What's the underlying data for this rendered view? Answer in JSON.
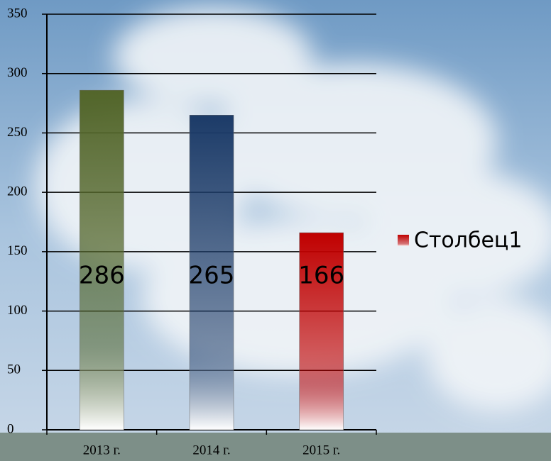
{
  "chart_data": {
    "type": "bar",
    "categories": [
      "2013 г.",
      "2014 г.",
      "2015 г."
    ],
    "series": [
      {
        "name": "Столбец1",
        "color": "#c00000",
        "values": [
          286,
          265,
          166
        ]
      }
    ],
    "bar_colors": [
      "#53662a",
      "#1c3b68",
      "#c00000"
    ],
    "ylim": [
      0,
      350
    ],
    "yticks": [
      0,
      50,
      100,
      150,
      200,
      250,
      300,
      350
    ],
    "grid": true,
    "data_labels": true,
    "legend": "right"
  }
}
